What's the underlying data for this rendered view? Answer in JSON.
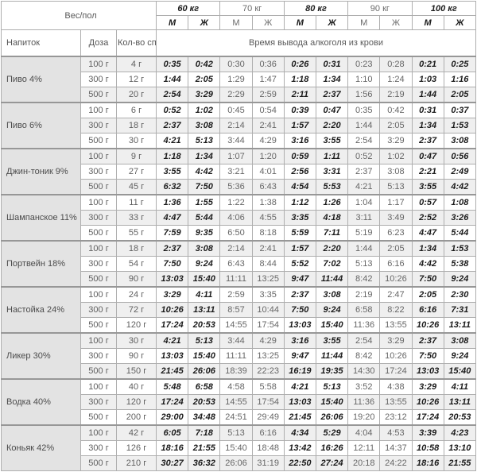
{
  "chart_data": {
    "type": "table",
    "corner_label": "Вес/пол",
    "drink_col_label": "Напиток",
    "dose_col_label": "Доза",
    "alcohol_col_label": "Кол-во спирта",
    "time_span_label": "Время вывода алкоголя из крови",
    "gender_labels": [
      "М",
      "Ж"
    ],
    "weights": [
      {
        "label": "60 кг",
        "emphasis": true
      },
      {
        "label": "70 кг",
        "emphasis": false
      },
      {
        "label": "80 кг",
        "emphasis": true
      },
      {
        "label": "90 кг",
        "emphasis": false
      },
      {
        "label": "100 кг",
        "emphasis": true
      }
    ],
    "drinks": [
      {
        "name": "Пиво 4%",
        "rows": [
          {
            "dose": "100 г",
            "alcohol": "4 г",
            "times": [
              "0:35",
              "0:42",
              "0:30",
              "0:36",
              "0:26",
              "0:31",
              "0:23",
              "0:28",
              "0:21",
              "0:25"
            ]
          },
          {
            "dose": "300 г",
            "alcohol": "12 г",
            "times": [
              "1:44",
              "2:05",
              "1:29",
              "1:47",
              "1:18",
              "1:34",
              "1:10",
              "1:24",
              "1:03",
              "1:16"
            ]
          },
          {
            "dose": "500 г",
            "alcohol": "20 г",
            "times": [
              "2:54",
              "3:29",
              "2:29",
              "2:59",
              "2:11",
              "2:37",
              "1:56",
              "2:19",
              "1:44",
              "2:05"
            ]
          }
        ]
      },
      {
        "name": "Пиво 6%",
        "rows": [
          {
            "dose": "100 г",
            "alcohol": "6 г",
            "times": [
              "0:52",
              "1:02",
              "0:45",
              "0:54",
              "0:39",
              "0:47",
              "0:35",
              "0:42",
              "0:31",
              "0:37"
            ]
          },
          {
            "dose": "300 г",
            "alcohol": "18 г",
            "times": [
              "2:37",
              "3:08",
              "2:14",
              "2:41",
              "1:57",
              "2:20",
              "1:44",
              "2:05",
              "1:34",
              "1:53"
            ]
          },
          {
            "dose": "500 г",
            "alcohol": "30 г",
            "times": [
              "4:21",
              "5:13",
              "3:44",
              "4:29",
              "3:16",
              "3:55",
              "2:54",
              "3:29",
              "2:37",
              "3:08"
            ]
          }
        ]
      },
      {
        "name": "Джин-тоник 9%",
        "rows": [
          {
            "dose": "100 г",
            "alcohol": "9 г",
            "times": [
              "1:18",
              "1:34",
              "1:07",
              "1:20",
              "0:59",
              "1:11",
              "0:52",
              "1:02",
              "0:47",
              "0:56"
            ]
          },
          {
            "dose": "300 г",
            "alcohol": "27 г",
            "times": [
              "3:55",
              "4:42",
              "3:21",
              "4:01",
              "2:56",
              "3:31",
              "2:37",
              "3:08",
              "2:21",
              "2:49"
            ]
          },
          {
            "dose": "500 г",
            "alcohol": "45 г",
            "times": [
              "6:32",
              "7:50",
              "5:36",
              "6:43",
              "4:54",
              "5:53",
              "4:21",
              "5:13",
              "3:55",
              "4:42"
            ]
          }
        ]
      },
      {
        "name": "Шампанское 11%",
        "rows": [
          {
            "dose": "100 г",
            "alcohol": "11 г",
            "times": [
              "1:36",
              "1:55",
              "1:22",
              "1:38",
              "1:12",
              "1:26",
              "1:04",
              "1:17",
              "0:57",
              "1:08"
            ]
          },
          {
            "dose": "300 г",
            "alcohol": "33 г",
            "times": [
              "4:47",
              "5:44",
              "4:06",
              "4:55",
              "3:35",
              "4:18",
              "3:11",
              "3:49",
              "2:52",
              "3:26"
            ]
          },
          {
            "dose": "500 г",
            "alcohol": "55 г",
            "times": [
              "7:59",
              "9:35",
              "6:50",
              "8:18",
              "5:59",
              "7:11",
              "5:19",
              "6:23",
              "4:47",
              "5:44"
            ]
          }
        ]
      },
      {
        "name": "Портвейн 18%",
        "rows": [
          {
            "dose": "100 г",
            "alcohol": "18 г",
            "times": [
              "2:37",
              "3:08",
              "2:14",
              "2:41",
              "1:57",
              "2:20",
              "1:44",
              "2:05",
              "1:34",
              "1:53"
            ]
          },
          {
            "dose": "300 г",
            "alcohol": "54 г",
            "times": [
              "7:50",
              "9:24",
              "6:43",
              "8:44",
              "5:52",
              "7:02",
              "5:13",
              "6:16",
              "4:42",
              "5:38"
            ]
          },
          {
            "dose": "500 г",
            "alcohol": "90 г",
            "times": [
              "13:03",
              "15:40",
              "11:11",
              "13:25",
              "9:47",
              "11:44",
              "8:42",
              "10:26",
              "7:50",
              "9:24"
            ]
          }
        ]
      },
      {
        "name": "Настойка 24%",
        "rows": [
          {
            "dose": "100 г",
            "alcohol": "24 г",
            "times": [
              "3:29",
              "4:11",
              "2:59",
              "3:35",
              "2:37",
              "3:08",
              "2:19",
              "2:47",
              "2:05",
              "2:30"
            ]
          },
          {
            "dose": "300 г",
            "alcohol": "72 г",
            "times": [
              "10:26",
              "13:11",
              "8:57",
              "10:44",
              "7:50",
              "9:24",
              "6:58",
              "8:22",
              "6:16",
              "7:31"
            ]
          },
          {
            "dose": "500 г",
            "alcohol": "120 г",
            "times": [
              "17:24",
              "20:53",
              "14:55",
              "17:54",
              "13:03",
              "15:40",
              "11:36",
              "13:55",
              "10:26",
              "13:11"
            ]
          }
        ]
      },
      {
        "name": "Ликер 30%",
        "rows": [
          {
            "dose": "100 г",
            "alcohol": "30 г",
            "times": [
              "4:21",
              "5:13",
              "3:44",
              "4:29",
              "3:16",
              "3:55",
              "2:54",
              "3:29",
              "2:37",
              "3:08"
            ]
          },
          {
            "dose": "300 г",
            "alcohol": "90 г",
            "times": [
              "13:03",
              "15:40",
              "11:11",
              "13:25",
              "9:47",
              "11:44",
              "8:42",
              "10:26",
              "7:50",
              "9:24"
            ]
          },
          {
            "dose": "500 г",
            "alcohol": "150 г",
            "times": [
              "21:45",
              "26:06",
              "18:39",
              "22:23",
              "16:19",
              "19:35",
              "14:30",
              "17:24",
              "13:03",
              "15:40"
            ]
          }
        ]
      },
      {
        "name": "Водка 40%",
        "rows": [
          {
            "dose": "100 г",
            "alcohol": "40 г",
            "times": [
              "5:48",
              "6:58",
              "4:58",
              "5:58",
              "4:21",
              "5:13",
              "3:52",
              "4:38",
              "3:29",
              "4:11"
            ]
          },
          {
            "dose": "300 г",
            "alcohol": "120 г",
            "times": [
              "17:24",
              "20:53",
              "14:55",
              "17:54",
              "13:03",
              "15:40",
              "11:36",
              "13:55",
              "10:26",
              "13:11"
            ]
          },
          {
            "dose": "500 г",
            "alcohol": "200 г",
            "times": [
              "29:00",
              "34:48",
              "24:51",
              "29:49",
              "21:45",
              "26:06",
              "19:20",
              "23:12",
              "17:24",
              "20:53"
            ]
          }
        ]
      },
      {
        "name": "Коньяк 42%",
        "rows": [
          {
            "dose": "100 г",
            "alcohol": "42 г",
            "times": [
              "6:05",
              "7:18",
              "5:13",
              "6:16",
              "4:34",
              "5:29",
              "4:04",
              "4:53",
              "3:39",
              "4:23"
            ]
          },
          {
            "dose": "300 г",
            "alcohol": "126 г",
            "times": [
              "18:16",
              "21:55",
              "15:40",
              "18:48",
              "13:42",
              "16:26",
              "12:11",
              "14:37",
              "10:58",
              "13:10"
            ]
          },
          {
            "dose": "500 г",
            "alcohol": "210 г",
            "times": [
              "30:27",
              "36:32",
              "26:06",
              "31:19",
              "22:50",
              "27:24",
              "20:18",
              "24:22",
              "18:16",
              "21:55"
            ]
          }
        ]
      }
    ],
    "colors": {
      "emphasis_text": "#1b1b1b",
      "muted_text": "#666666",
      "stripe_bg": "#efefef",
      "drink_cell_bg": "#e3e3e3",
      "border": "#aeaeae",
      "group_border": "#979797"
    }
  }
}
